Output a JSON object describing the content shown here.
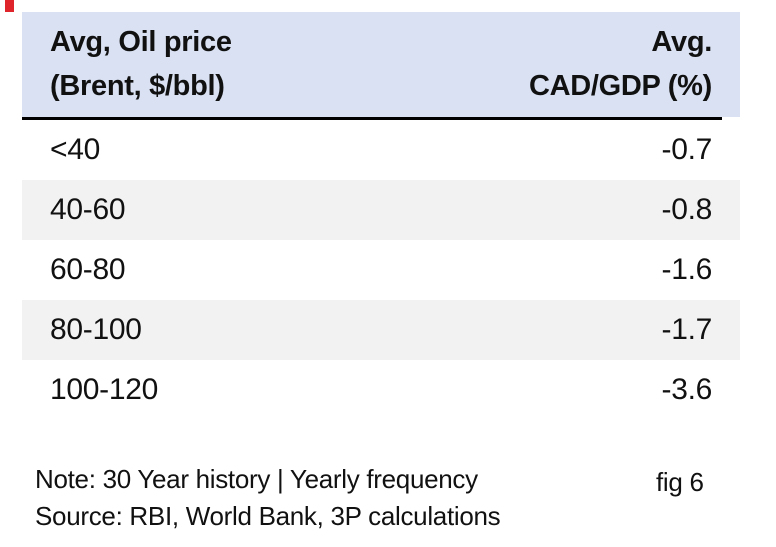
{
  "theme": {
    "page_bg": "#ffffff",
    "header_bg": "#d9e1f2",
    "shaded_row_bg": "#f2f2f2",
    "divider": "#000000",
    "text": "#111111",
    "red_mark": "#e0242b"
  },
  "artifact": {
    "red_mark_name": "red-corner-mark"
  },
  "table": {
    "header": {
      "col1_line1": "Avg, Oil price",
      "col1_line2": "(Brent, $/bbl)",
      "col2_line1": "Avg.",
      "col2_line2": "CAD/GDP (%)"
    },
    "rows": [
      {
        "range": "<40",
        "value": "-0.7",
        "shaded": false
      },
      {
        "range": "40-60",
        "value": "-0.8",
        "shaded": true
      },
      {
        "range": "60-80",
        "value": "-1.6",
        "shaded": false
      },
      {
        "range": "80-100",
        "value": "-1.7",
        "shaded": true
      },
      {
        "range": "100-120",
        "value": "-3.6",
        "shaded": false
      }
    ]
  },
  "footer": {
    "note": "Note: 30 Year history | Yearly frequency",
    "source": "Source: RBI, World Bank, 3P calculations",
    "figure_label": "fig 6"
  },
  "chart_data": {
    "type": "table",
    "title": "Avg CAD/GDP by Brent oil price bucket",
    "columns": [
      "Avg, Oil price (Brent, $/bbl)",
      "Avg. CAD/GDP (%)"
    ],
    "categories": [
      "<40",
      "40-60",
      "60-80",
      "80-100",
      "100-120"
    ],
    "values": [
      -0.7,
      -0.8,
      -1.6,
      -1.7,
      -3.6
    ],
    "note": "Note: 30 Year history | Yearly frequency",
    "source": "Source: RBI, World Bank, 3P calculations",
    "figure": "fig 6"
  }
}
